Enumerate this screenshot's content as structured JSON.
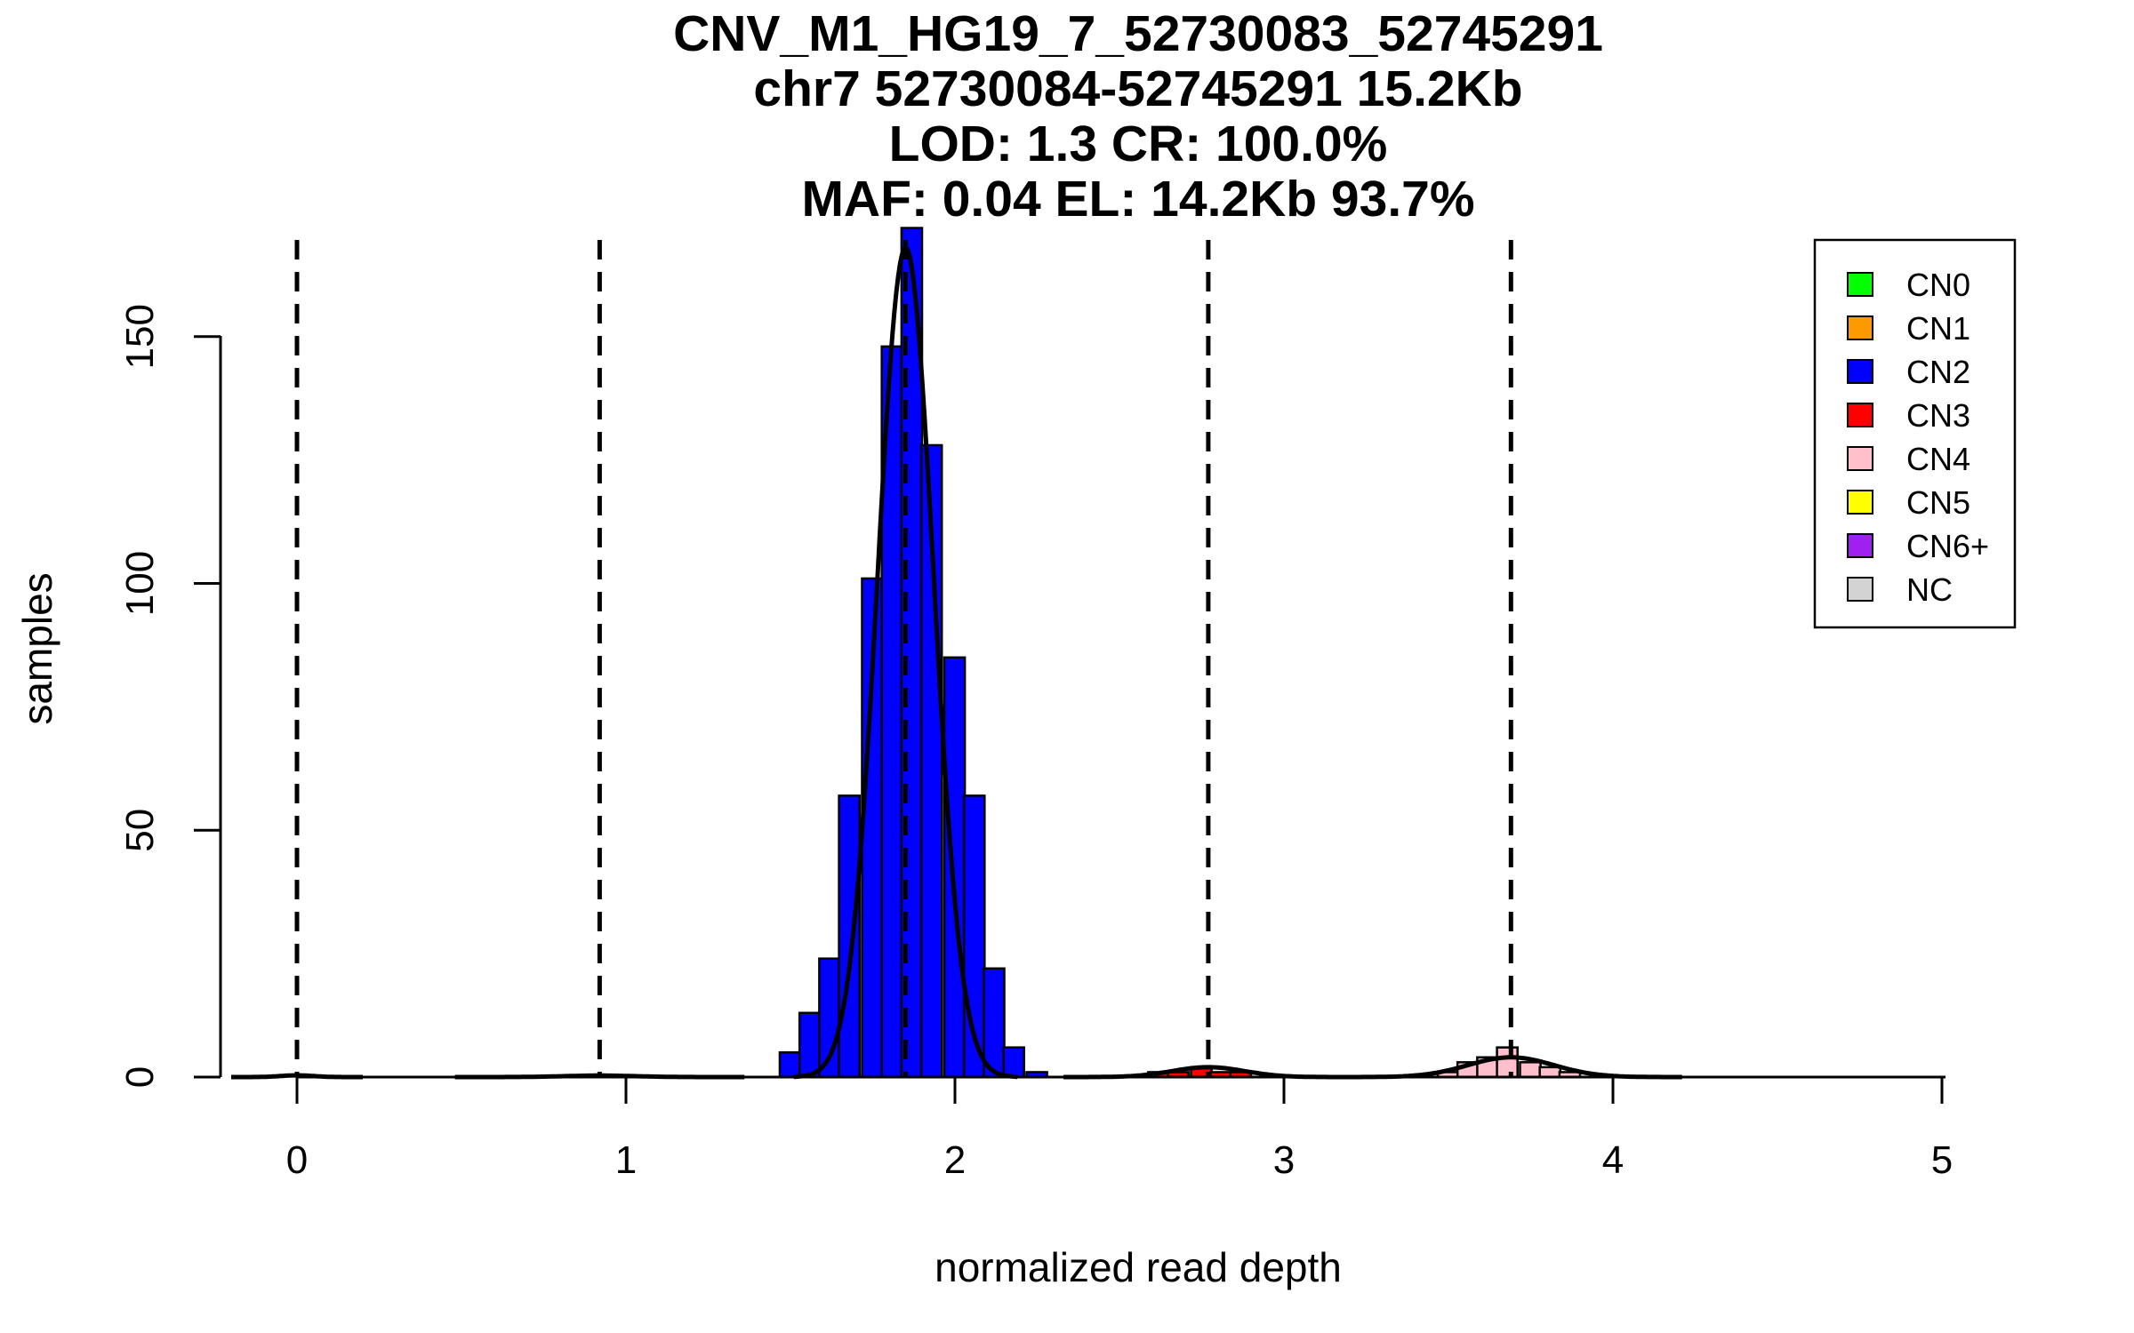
{
  "chart_data": {
    "type": "bar",
    "title_lines": [
      "CNV_M1_HG19_7_52730083_52745291",
      "chr7 52730084-52745291 15.2Kb",
      "LOD: 1.3 CR: 100.0%",
      "MAF: 0.04 EL: 14.2Kb 93.7%"
    ],
    "xlabel": "normalized read depth",
    "ylabel": "samples",
    "xlim": [
      -0.13,
      5.13
    ],
    "ylim": [
      0,
      172
    ],
    "x_ticks": [
      "0",
      "1",
      "2",
      "3",
      "4",
      "5"
    ],
    "y_ticks": [
      "0",
      "50",
      "100",
      "150"
    ],
    "bin_width": 0.0625,
    "vlines": [
      0.0,
      0.92,
      1.85,
      2.77,
      3.69
    ],
    "vline_style": "dashed",
    "colors": {
      "CN0": "#00ff00",
      "CN1": "#ff9900",
      "CN2": "#0000ff",
      "CN3": "#ff0000",
      "CN4": "#ffc0cb",
      "CN5": "#ffff00",
      "CN6+": "#a020f0",
      "NC": "#d3d3d3"
    },
    "legend": {
      "position": "top-right",
      "entries": [
        "CN0",
        "CN1",
        "CN2",
        "CN3",
        "CN4",
        "CN5",
        "CN6+",
        "NC"
      ]
    },
    "bars": [
      {
        "x": 1.53,
        "count": 5,
        "cn": "CN2"
      },
      {
        "x": 1.59,
        "count": 13,
        "cn": "CN2"
      },
      {
        "x": 1.65,
        "count": 24,
        "cn": "CN2"
      },
      {
        "x": 1.71,
        "count": 57,
        "cn": "CN2"
      },
      {
        "x": 1.78,
        "count": 101,
        "cn": "CN2"
      },
      {
        "x": 1.84,
        "count": 148,
        "cn": "CN2"
      },
      {
        "x": 1.9,
        "count": 172,
        "cn": "CN2"
      },
      {
        "x": 1.96,
        "count": 128,
        "cn": "CN2"
      },
      {
        "x": 2.03,
        "count": 85,
        "cn": "CN2"
      },
      {
        "x": 2.09,
        "count": 57,
        "cn": "CN2"
      },
      {
        "x": 2.15,
        "count": 22,
        "cn": "CN2"
      },
      {
        "x": 2.21,
        "count": 6,
        "cn": "CN2"
      },
      {
        "x": 2.28,
        "count": 1,
        "cn": "CN2"
      },
      {
        "x": 2.65,
        "count": 1,
        "cn": "CN3"
      },
      {
        "x": 2.71,
        "count": 1,
        "cn": "CN3"
      },
      {
        "x": 2.78,
        "count": 2,
        "cn": "CN3"
      },
      {
        "x": 2.84,
        "count": 1,
        "cn": "CN3"
      },
      {
        "x": 2.9,
        "count": 1,
        "cn": "CN3"
      },
      {
        "x": 3.53,
        "count": 1,
        "cn": "CN4"
      },
      {
        "x": 3.59,
        "count": 3,
        "cn": "CN4"
      },
      {
        "x": 3.65,
        "count": 4,
        "cn": "CN4"
      },
      {
        "x": 3.71,
        "count": 6,
        "cn": "CN4"
      },
      {
        "x": 3.78,
        "count": 3,
        "cn": "CN4"
      },
      {
        "x": 3.84,
        "count": 2,
        "cn": "CN4"
      },
      {
        "x": 3.9,
        "count": 1,
        "cn": "CN4"
      }
    ],
    "curves": [
      {
        "name": "CN0",
        "mean": 0.0,
        "sd": 0.05,
        "peak": 0.35
      },
      {
        "name": "CN1",
        "mean": 0.92,
        "sd": 0.11,
        "peak": 0.3
      },
      {
        "name": "CN2",
        "mean": 1.85,
        "sd": 0.085,
        "peak": 168
      },
      {
        "name": "CN3",
        "mean": 2.77,
        "sd": 0.11,
        "peak": 2
      },
      {
        "name": "CN4",
        "mean": 3.69,
        "sd": 0.13,
        "peak": 4
      }
    ]
  }
}
